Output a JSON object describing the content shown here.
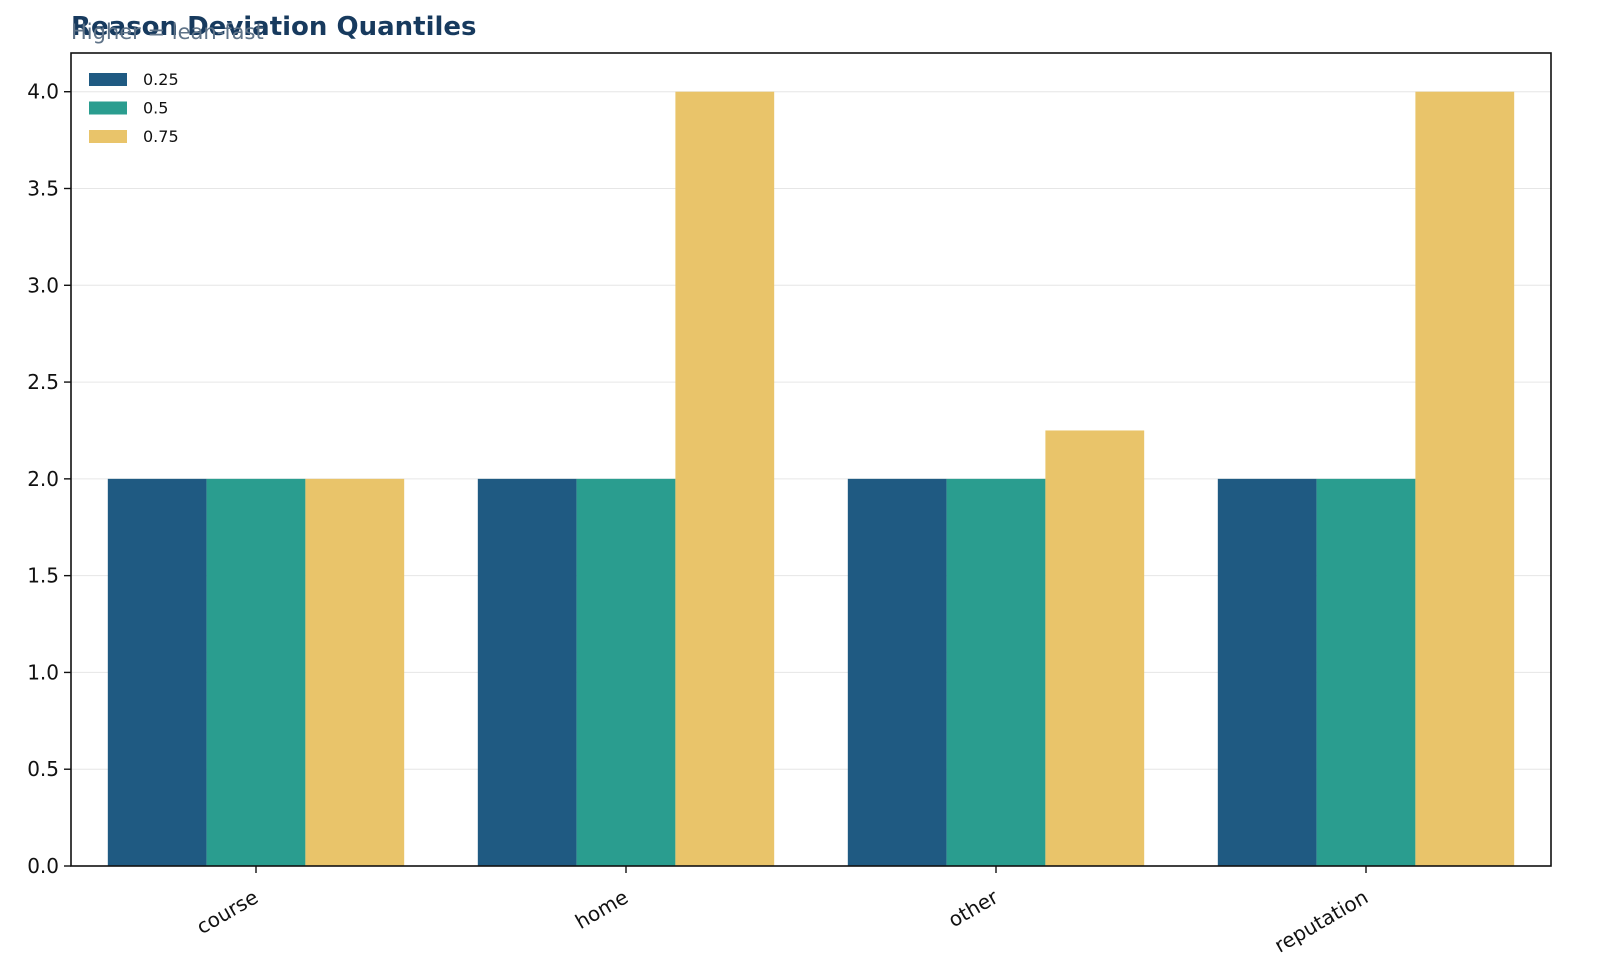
{
  "chart_data": {
    "type": "bar",
    "title": "Reason Deviation Quantiles",
    "subtitle": "Higher = lean-fast",
    "xlabel": "",
    "ylabel": "",
    "categories": [
      "course",
      "home",
      "other",
      "reputation"
    ],
    "series": [
      {
        "name": "0.25",
        "values": [
          2.0,
          2.0,
          2.0,
          2.0
        ],
        "color": "#1f5a82"
      },
      {
        "name": "0.5",
        "values": [
          2.0,
          2.0,
          2.0,
          2.0
        ],
        "color": "#2a9d8f"
      },
      {
        "name": "0.75",
        "values": [
          2.0,
          4.0,
          2.25,
          4.0
        ],
        "color": "#e9c46a"
      }
    ],
    "ylim": [
      0,
      4.2
    ],
    "yticks": [
      0.0,
      0.5,
      1.0,
      1.5,
      2.0,
      2.5,
      3.0,
      3.5,
      4.0
    ],
    "ytick_labels": [
      "0.0",
      "0.5",
      "1.0",
      "1.5",
      "2.0",
      "2.5",
      "3.0",
      "3.5",
      "4.0"
    ],
    "grid": "horizontal",
    "legend_position": "top-left"
  }
}
